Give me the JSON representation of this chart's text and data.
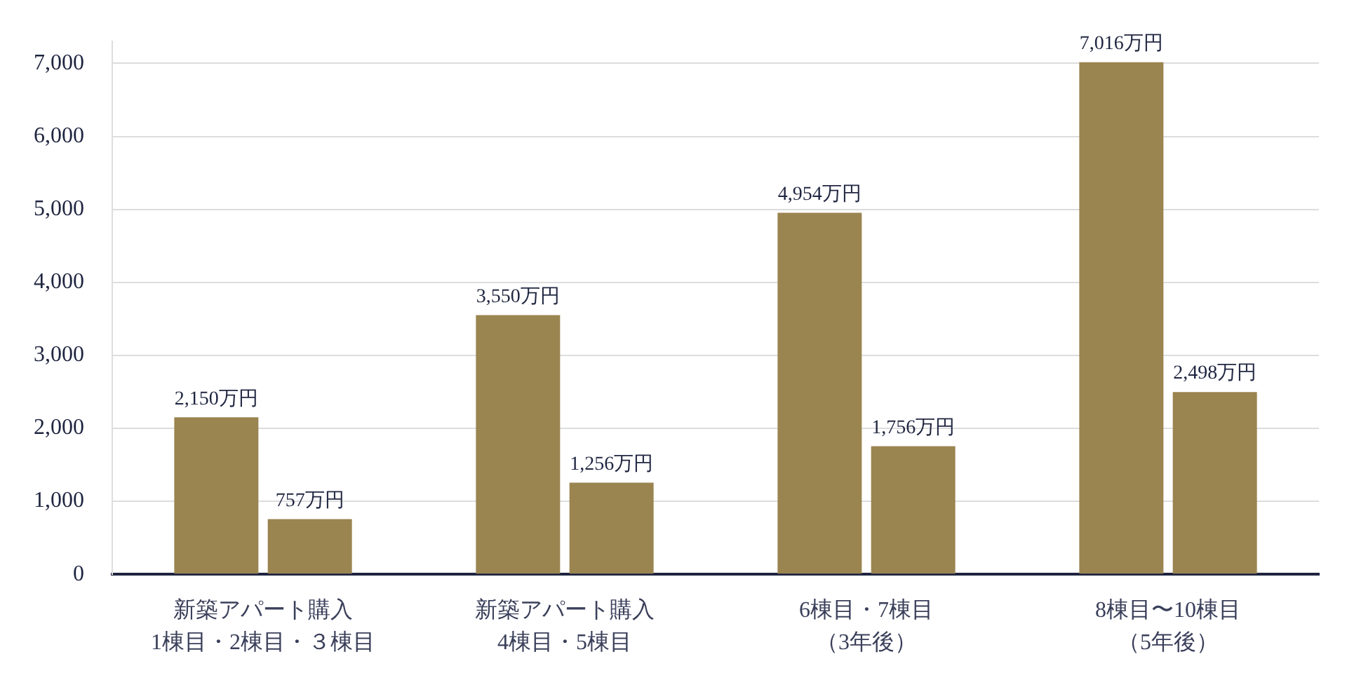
{
  "chart_data": {
    "type": "bar",
    "categories": [
      "新築アパート購入\n1棟目・2棟目・３棟目",
      "新築アパート購入\n4棟目・5棟目",
      "6棟目・7棟目（3年後）",
      "8棟目〜10棟目（5年後）"
    ],
    "series": [
      {
        "color": "#9a8450",
        "values": [
          2150,
          3550,
          4954,
          7016
        ],
        "value_labels": [
          "2,150万円",
          "3,550万円",
          "4,954万円",
          "7,016万円"
        ]
      },
      {
        "color": "#9a8450",
        "values": [
          757,
          1256,
          1756,
          2498
        ],
        "value_labels": [
          "757万円",
          "1,256万円",
          "1,756万円",
          "2,498万円"
        ]
      }
    ],
    "ylim": [
      0,
      7300
    ],
    "yticks": [
      0,
      {
        "value": 1000,
        "label": "1,000"
      },
      {
        "value": 2000,
        "label": "2,000"
      },
      {
        "value": 3000,
        "label": "3,000"
      },
      {
        "value": 4000,
        "label": "4,000"
      },
      {
        "value": 5000,
        "label": "5,000"
      },
      {
        "value": 6000,
        "label": "6,000"
      },
      {
        "value": 7000,
        "label": "7,000"
      }
    ],
    "grid": "y",
    "legend": false
  }
}
